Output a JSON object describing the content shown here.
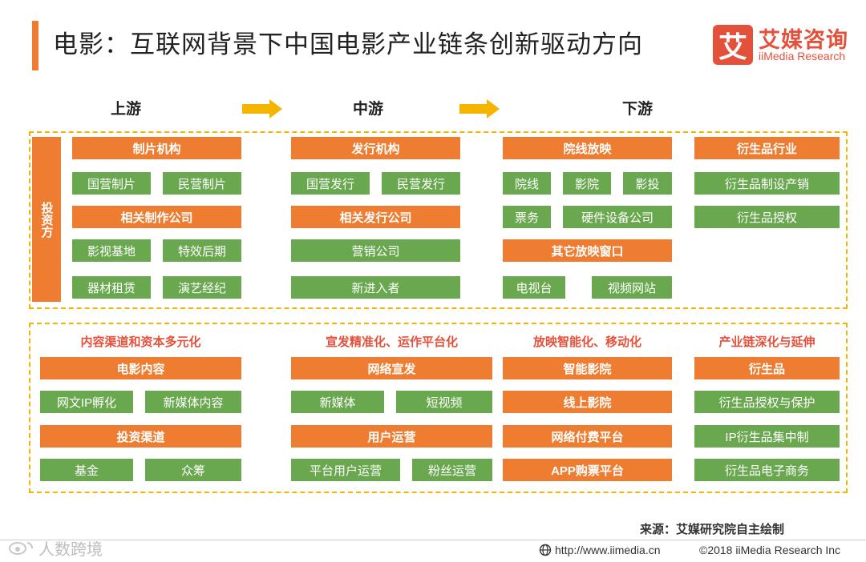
{
  "header": {
    "title": "电影：互联网背景下中国电影产业链条创新驱动方向",
    "logo_glyph": "艾",
    "logo_cn": "艾媒咨询",
    "logo_en": "iiMedia Research"
  },
  "stages": {
    "upstream": "上游",
    "midstream": "中游",
    "downstream": "下游"
  },
  "top_panel": {
    "investor": "投资方",
    "upstream": {
      "producers": "制片机构",
      "state_production": "国营制片",
      "private_production": "民营制片",
      "related_production": "相关制作公司",
      "film_base": "影视基地",
      "vfx": "特效后期",
      "equipment_rental": "器材租赁",
      "talent_agency": "演艺经纪"
    },
    "midstream": {
      "distributors": "发行机构",
      "state_distribution": "国营发行",
      "private_distribution": "民营发行",
      "related_distribution": "相关发行公司",
      "marketing": "营销公司",
      "new_entrants": "新进入者"
    },
    "downstream": {
      "theater_screening": "院线放映",
      "theater_chain": "院线",
      "cinema": "影院",
      "cinema_investment": "影投",
      "ticketing": "票务",
      "hardware": "硬件设备公司",
      "other_windows": "其它放映窗口",
      "tv": "电视台",
      "video_sites": "视频网站"
    },
    "derivatives": {
      "industry": "衍生品行业",
      "production_sales": "衍生品制设产销",
      "licensing": "衍生品授权"
    }
  },
  "bottom_panel": {
    "col1": {
      "category": "内容渠道和资本多元化",
      "film_content": "电影内容",
      "ip_incubation": "网文IP孵化",
      "new_media_content": "新媒体内容",
      "investment_channels": "投资渠道",
      "funds": "基金",
      "crowdfunding": "众筹"
    },
    "col2": {
      "category": "宣发精准化、运作平台化",
      "online_promotion": "网络宣发",
      "new_media": "新媒体",
      "short_video": "短视频",
      "user_operation": "用户运营",
      "platform_user_operation": "平台用户运营",
      "fan_operation": "粉丝运营"
    },
    "col3": {
      "category": "放映智能化、移动化",
      "smart_cinema": "智能影院",
      "online_cinema": "线上影院",
      "paid_platform": "网络付费平台",
      "app_ticketing": "APP购票平台"
    },
    "col4": {
      "category": "产业链深化与延伸",
      "derivatives": "衍生品",
      "licensing_protection": "衍生品授权与保护",
      "ip_centralized": "IP衍生品集中制",
      "ecommerce": "衍生品电子商务"
    }
  },
  "footer": {
    "source": "来源：艾媒研究院自主绘制",
    "watermark": "人数跨境",
    "url": "http://www.iimedia.cn",
    "copyright": "©2018  iiMedia Research  Inc"
  },
  "colors": {
    "orange": "#ee7d32",
    "green": "#6aa84f",
    "dash": "#f5b400",
    "red": "#e4513b"
  }
}
